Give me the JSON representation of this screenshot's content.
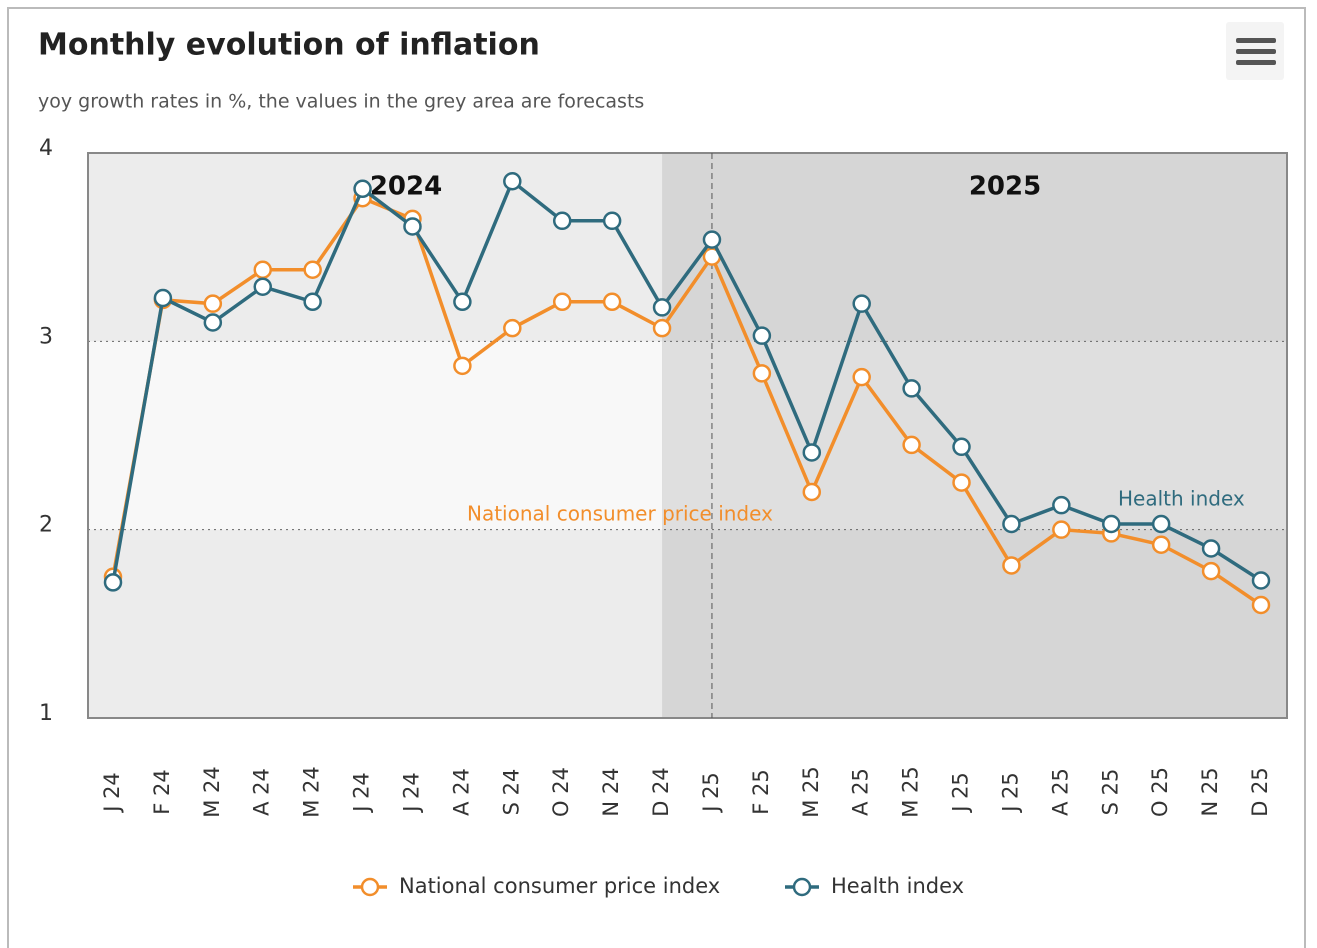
{
  "chart_data": {
    "type": "line",
    "title": "Monthly evolution of inflation",
    "subtitle": "yoy growth rates in %, the values in the grey area are forecasts",
    "categories": [
      "J 24",
      "F 24",
      "M 24",
      "A 24",
      "M 24",
      "J 24",
      "J 24",
      "A 24",
      "S 24",
      "O 24",
      "N 24",
      "D 24",
      "J 25",
      "F 25",
      "M 25",
      "A 25",
      "M 25",
      "J 25",
      "J 25",
      "A 25",
      "S 25",
      "O 25",
      "N 25",
      "D 25"
    ],
    "series": [
      {
        "name": "National consumer price index",
        "color": "#f28e2b",
        "values": [
          1.75,
          3.22,
          3.2,
          3.38,
          3.38,
          3.76,
          3.65,
          2.87,
          3.07,
          3.21,
          3.21,
          3.07,
          3.45,
          2.83,
          2.2,
          2.81,
          2.45,
          2.25,
          1.81,
          2.0,
          1.98,
          1.92,
          1.78,
          1.6
        ]
      },
      {
        "name": "Health index",
        "color": "#2f6b7e",
        "values": [
          1.72,
          3.23,
          3.1,
          3.29,
          3.21,
          3.81,
          3.61,
          3.21,
          3.85,
          3.64,
          3.64,
          3.18,
          3.54,
          3.03,
          2.41,
          3.2,
          2.75,
          2.44,
          2.03,
          2.13,
          2.03,
          2.03,
          1.9,
          1.73
        ]
      }
    ],
    "ylim": [
      1,
      4
    ],
    "yticks": [
      1,
      2,
      3,
      4
    ],
    "grid": true,
    "year_labels": [
      "2024",
      "2025"
    ],
    "series_labels": [
      "National consumer price index",
      "Health index"
    ],
    "legend": "bottom"
  }
}
